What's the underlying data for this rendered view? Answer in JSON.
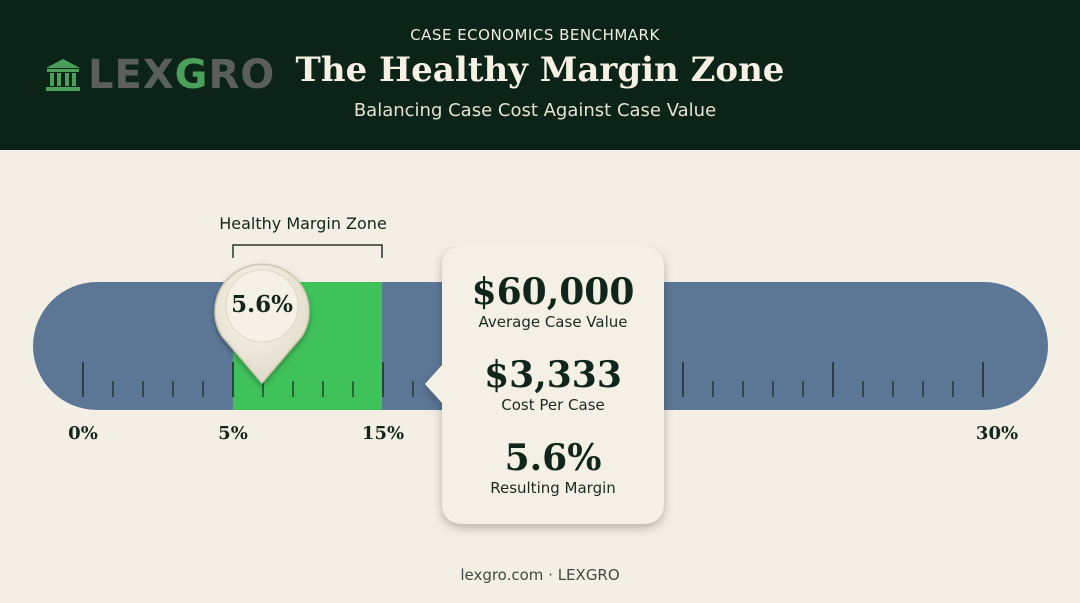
{
  "header": {
    "kicker": "CASE ECONOMICS BENCHMARK",
    "title": "The Healthy Margin Zone",
    "subtitle": "Balancing Case Cost Against Case Value",
    "logo": {
      "text_a": "LEX",
      "text_b": "G",
      "text_c": "RO",
      "icon": "bank-building-icon"
    }
  },
  "scale": {
    "min_percent": 0,
    "max_percent": 30,
    "labels": [
      "0%",
      "5%",
      "15%",
      "30%"
    ],
    "zone_label": "Healthy Margin Zone",
    "zone_range": [
      5,
      15
    ],
    "marker_value": 5.6,
    "marker_label": "5.6%"
  },
  "card": {
    "stats": [
      {
        "value": "$60,000",
        "label": "Average Case Value"
      },
      {
        "value": "$3,333",
        "label": "Cost Per Case"
      },
      {
        "value": "5.6%",
        "label": "Resulting Margin"
      }
    ]
  },
  "colors": {
    "header_bg": "#0b2417",
    "track": "#5c7796",
    "zone": "#3fc25a",
    "page_bg": "#f3efe5"
  },
  "footer": {
    "text": "lexgro.com · LEXGRO"
  }
}
